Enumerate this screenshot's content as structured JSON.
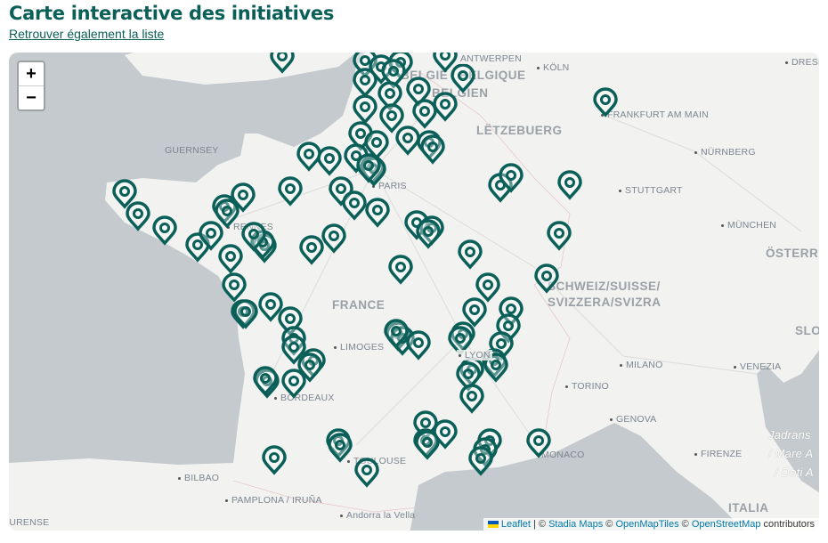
{
  "header": {
    "title": "Carte interactive des initiatives",
    "list_link": "Retrouver également la liste"
  },
  "map": {
    "zoom_in": "+",
    "zoom_out": "−",
    "marker_color": "#0a5f58",
    "marker_icon": "map-pin-icon",
    "labels": {
      "antwerpen": "ANTWERPEN",
      "belgique": "BELGIË / BELGIQUE",
      "belgien": "BELGIEN",
      "koln": "KÖLN",
      "dresden": "DRESDEN",
      "frankfurt": "FRANKFURT AM MAIN",
      "letzebuerg": "LËTZEBUERG",
      "nurnberg": "NÜRNBERG",
      "guernsey": "GUERNSEY",
      "paris": "PARIS",
      "stuttgart": "STUTTGART",
      "rennes": "RENNES",
      "munchen": "MÜNCHEN",
      "osterreich": "ÖSTERREICH",
      "france": "FRANCE",
      "schweiz1": "SCHWEIZ/SUISSE/",
      "schweiz2": "SVIZZERA/SVIZRA",
      "limoges": "LIMOGES",
      "slovenija": "SLOV",
      "milano": "MILANO",
      "venezia": "VENEZIA",
      "lyon": "LYON",
      "bordeaux": "BORDEAUX",
      "torino": "TORINO",
      "genova": "GENOVA",
      "jadransko1": "Jadrans",
      "jadransko2": "/ Mare A",
      "jadransko3": "/ Deti A",
      "bilbao": "BILBAO",
      "toulouse": "TOULOUSE",
      "monaco": "MONACO",
      "firenze": "FIRENZE",
      "pamplona": "PAMPLONA / IRUÑA",
      "italia": "ITALIA",
      "andorra": "Andorra la Vella",
      "ourense": "OURENSE"
    },
    "attribution": {
      "leaflet": "Leaflet",
      "sep": " | © ",
      "stadia": "Stadia Maps",
      "c1": " © ",
      "openmaptiles": "OpenMapTiles",
      "c2": " © ",
      "osm": "OpenStreetMap",
      "contributors": " contributors"
    }
  }
}
